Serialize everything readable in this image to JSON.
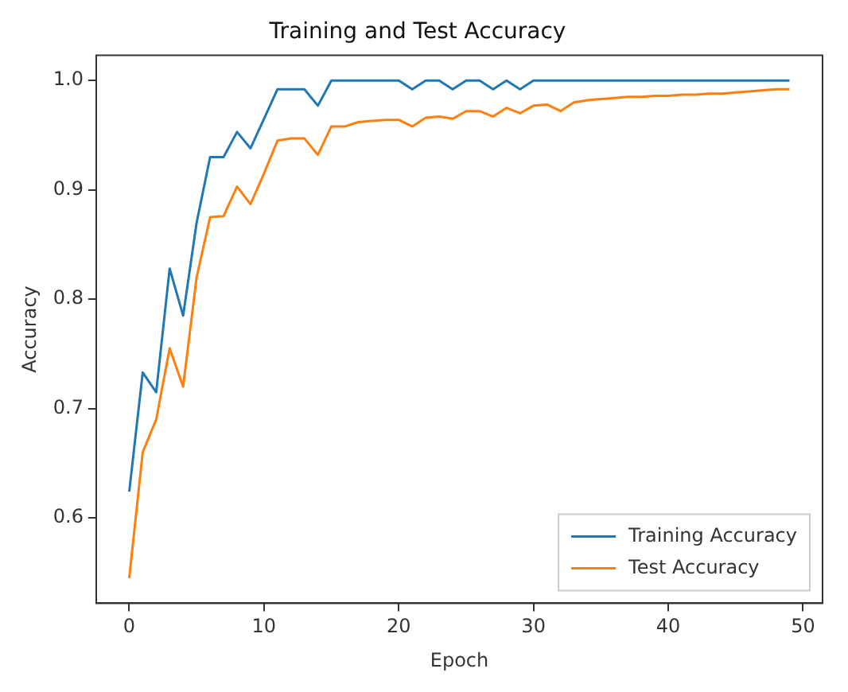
{
  "chart_data": {
    "type": "line",
    "title": "Training and Test Accuracy",
    "xlabel": "Epoch",
    "ylabel": "Accuracy",
    "x": [
      0,
      1,
      2,
      3,
      4,
      5,
      6,
      7,
      8,
      9,
      10,
      11,
      12,
      13,
      14,
      15,
      16,
      17,
      18,
      19,
      20,
      21,
      22,
      23,
      24,
      25,
      26,
      27,
      28,
      29,
      30,
      31,
      32,
      33,
      34,
      35,
      36,
      37,
      38,
      39,
      40,
      41,
      42,
      43,
      44,
      45,
      46,
      47,
      48,
      49
    ],
    "series": [
      {
        "name": "Training Accuracy",
        "color": "#1f77b4",
        "values": [
          0.624,
          0.733,
          0.715,
          0.828,
          0.785,
          0.87,
          0.93,
          0.93,
          0.953,
          0.938,
          0.965,
          0.992,
          0.992,
          0.992,
          0.977,
          1.0,
          1.0,
          1.0,
          1.0,
          1.0,
          1.0,
          0.992,
          1.0,
          1.0,
          0.992,
          1.0,
          1.0,
          0.992,
          1.0,
          0.992,
          1.0,
          1.0,
          1.0,
          1.0,
          1.0,
          1.0,
          1.0,
          1.0,
          1.0,
          1.0,
          1.0,
          1.0,
          1.0,
          1.0,
          1.0,
          1.0,
          1.0,
          1.0,
          1.0,
          1.0
        ]
      },
      {
        "name": "Test Accuracy",
        "color": "#ff7f0e",
        "values": [
          0.545,
          0.66,
          0.69,
          0.755,
          0.72,
          0.82,
          0.875,
          0.876,
          0.903,
          0.887,
          0.915,
          0.945,
          0.947,
          0.947,
          0.932,
          0.958,
          0.958,
          0.962,
          0.963,
          0.964,
          0.964,
          0.958,
          0.966,
          0.967,
          0.965,
          0.972,
          0.972,
          0.967,
          0.975,
          0.97,
          0.977,
          0.978,
          0.972,
          0.98,
          0.982,
          0.983,
          0.984,
          0.985,
          0.985,
          0.986,
          0.986,
          0.987,
          0.987,
          0.988,
          0.988,
          0.989,
          0.99,
          0.991,
          0.992,
          0.992
        ]
      }
    ],
    "xlim": [
      -2.45,
      51.45
    ],
    "xticks": [
      0,
      10,
      20,
      30,
      40,
      50
    ],
    "ylim": [
      0.522,
      1.023
    ],
    "yticks": [
      0.6,
      0.7,
      0.8,
      0.9,
      {
        "value": 1,
        "label": "1.0"
      }
    ],
    "grid": false,
    "legend": "bottom right",
    "marker": "none",
    "line_style": "solid"
  }
}
